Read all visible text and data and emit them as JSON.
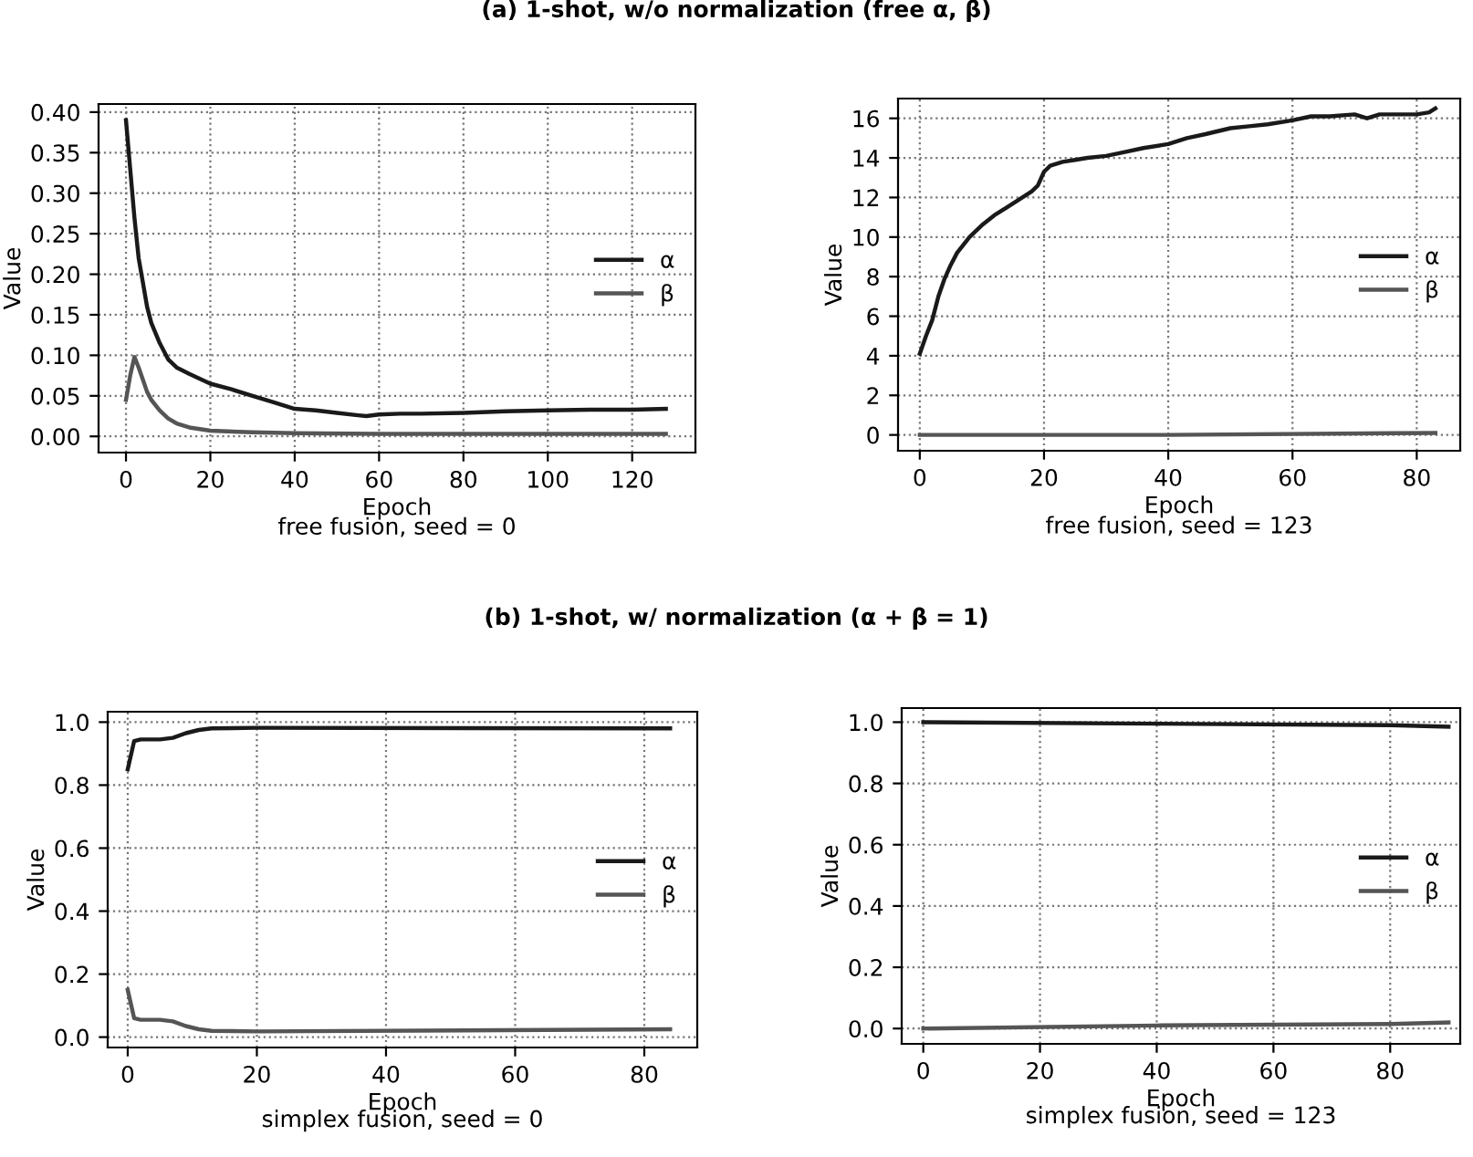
{
  "chart_data": [
    {
      "type": "line",
      "title": "(a) 1-shot, w/o normalization (free α, β)",
      "xlabel": "Epoch",
      "ylabel": "Value",
      "annotations": [
        "free fusion, seed = 0"
      ],
      "xlim": [
        -6.5,
        135
      ],
      "xticks": [
        0,
        20,
        40,
        60,
        80,
        100,
        120
      ],
      "ylim": [
        -0.02,
        0.41
      ],
      "yticks": [
        {
          "value": 0,
          "label": "0.00"
        },
        0.05,
        {
          "value": 0.1,
          "label": "0.10"
        },
        0.15,
        {
          "value": 0.2,
          "label": "0.20"
        },
        0.25,
        {
          "value": 0.3,
          "label": "0.30"
        },
        0.35,
        {
          "value": 0.4,
          "label": "0.40"
        }
      ],
      "grid": true,
      "legend": "right",
      "line_style": "solid",
      "marker": "none",
      "series": [
        {
          "name": "α",
          "color": "#1a1a1a",
          "x": [
            0,
            1,
            2,
            3,
            4,
            5,
            6,
            8,
            10,
            12,
            15,
            20,
            25,
            30,
            35,
            40,
            45,
            50,
            55,
            57,
            60,
            65,
            70,
            80,
            90,
            100,
            110,
            120,
            128
          ],
          "values": [
            0.39,
            0.33,
            0.27,
            0.22,
            0.19,
            0.16,
            0.14,
            0.115,
            0.095,
            0.085,
            0.077,
            0.065,
            0.058,
            0.05,
            0.042,
            0.034,
            0.032,
            0.029,
            0.026,
            0.025,
            0.027,
            0.028,
            0.028,
            0.029,
            0.031,
            0.032,
            0.033,
            0.033,
            0.034
          ]
        },
        {
          "name": "β",
          "color": "#555555",
          "x": [
            0,
            1,
            2,
            3,
            4,
            5,
            6,
            8,
            10,
            12,
            15,
            20,
            30,
            40,
            60,
            128
          ],
          "values": [
            0.045,
            0.075,
            0.098,
            0.085,
            0.07,
            0.055,
            0.045,
            0.032,
            0.022,
            0.016,
            0.011,
            0.007,
            0.005,
            0.004,
            0.003,
            0.003
          ]
        }
      ]
    },
    {
      "type": "line",
      "xlabel": "Epoch",
      "ylabel": "Value",
      "annotations": [
        "free fusion, seed = 123"
      ],
      "xlim": [
        -3.5,
        87
      ],
      "xticks": [
        0,
        20,
        40,
        60,
        80
      ],
      "ylim": [
        -0.8,
        17
      ],
      "yticks": [
        0,
        2,
        4,
        6,
        8,
        10,
        12,
        14,
        16
      ],
      "grid": true,
      "legend": "right",
      "line_style": "solid",
      "marker": "none",
      "series": [
        {
          "name": "α",
          "color": "#1a1a1a",
          "x": [
            0,
            1,
            2,
            3,
            4,
            5,
            6,
            8,
            10,
            12,
            14,
            16,
            18,
            19,
            20,
            21,
            23,
            25,
            27,
            30,
            33,
            36,
            40,
            43,
            46,
            50,
            53,
            56,
            60,
            63,
            66,
            70,
            72,
            74,
            78,
            80,
            82,
            83
          ],
          "values": [
            4.1,
            5.0,
            5.8,
            7.0,
            7.9,
            8.6,
            9.2,
            10.0,
            10.6,
            11.1,
            11.5,
            11.9,
            12.3,
            12.6,
            13.3,
            13.6,
            13.8,
            13.9,
            14.0,
            14.1,
            14.3,
            14.5,
            14.7,
            15.0,
            15.2,
            15.5,
            15.6,
            15.7,
            15.9,
            16.1,
            16.1,
            16.2,
            16.0,
            16.2,
            16.2,
            16.2,
            16.3,
            16.5
          ]
        },
        {
          "name": "β",
          "color": "#555555",
          "x": [
            0,
            40,
            83
          ],
          "values": [
            0.0,
            0.0,
            0.1
          ]
        }
      ]
    },
    {
      "type": "line",
      "title": "(b) 1-shot, w/ normalization (α + β = 1)",
      "xlabel": "Epoch",
      "ylabel": "Value",
      "annotations": [
        "simplex fusion, seed = 0"
      ],
      "xlim": [
        -3.1,
        88.2
      ],
      "xticks": [
        0,
        20,
        40,
        60,
        80
      ],
      "ylim": [
        -0.033,
        1.033
      ],
      "yticks": [
        {
          "value": 0,
          "label": "0.0"
        },
        0.2,
        0.4,
        0.6,
        0.8,
        {
          "value": 1,
          "label": "1.0"
        }
      ],
      "grid": true,
      "legend": "right",
      "line_style": "solid",
      "marker": "none",
      "series": [
        {
          "name": "α",
          "color": "#1a1a1a",
          "x": [
            0,
            1,
            2,
            5,
            7,
            9,
            11,
            13,
            20,
            84
          ],
          "values": [
            0.85,
            0.94,
            0.945,
            0.945,
            0.95,
            0.965,
            0.975,
            0.98,
            0.982,
            0.98
          ]
        },
        {
          "name": "β",
          "color": "#555555",
          "x": [
            0,
            1,
            2,
            5,
            7,
            9,
            11,
            13,
            20,
            84
          ],
          "values": [
            0.15,
            0.06,
            0.055,
            0.055,
            0.05,
            0.035,
            0.025,
            0.02,
            0.018,
            0.025
          ]
        }
      ]
    },
    {
      "type": "line",
      "xlabel": "Epoch",
      "ylabel": "Value",
      "annotations": [
        "simplex fusion, seed = 123"
      ],
      "xlim": [
        -3.7,
        92
      ],
      "xticks": [
        0,
        20,
        40,
        60,
        80
      ],
      "ylim": [
        -0.05,
        1.046
      ],
      "yticks": [
        {
          "value": 0,
          "label": "0.0"
        },
        0.2,
        0.4,
        0.6,
        0.8,
        {
          "value": 1,
          "label": "1.0"
        }
      ],
      "grid": true,
      "legend": "right",
      "line_style": "solid",
      "marker": "none",
      "series": [
        {
          "name": "α",
          "color": "#1a1a1a",
          "x": [
            0,
            40,
            80,
            90
          ],
          "values": [
            1.0,
            0.995,
            0.99,
            0.985
          ]
        },
        {
          "name": "β",
          "color": "#555555",
          "x": [
            0,
            40,
            80,
            90
          ],
          "values": [
            0.0,
            0.01,
            0.015,
            0.02
          ]
        }
      ]
    }
  ]
}
